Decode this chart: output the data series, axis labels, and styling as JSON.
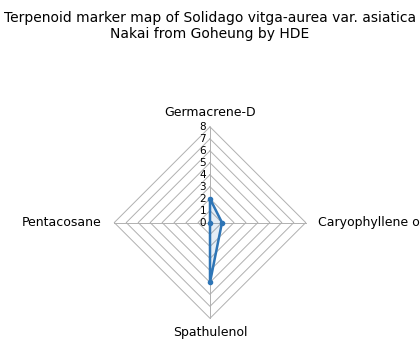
{
  "title": "Terpenoid marker map of Solidago vitga-aurea var. asiatica\nNakai from Goheung by HDE",
  "categories": [
    "Germacrene-D",
    "Caryophyllene oxide",
    "Spathulenol",
    "Pentacosane"
  ],
  "values": [
    2,
    1,
    5,
    0
  ],
  "max_val": 8,
  "tick_values": [
    0,
    1,
    2,
    3,
    4,
    5,
    6,
    7,
    8
  ],
  "line_color": "#2e75b6",
  "fill_color": "#2e75b6",
  "fill_alpha": 0.12,
  "grid_color": "#b0b0b0",
  "background_color": "#ffffff",
  "title_fontsize": 10,
  "label_fontsize": 9,
  "tick_fontsize": 7.5
}
